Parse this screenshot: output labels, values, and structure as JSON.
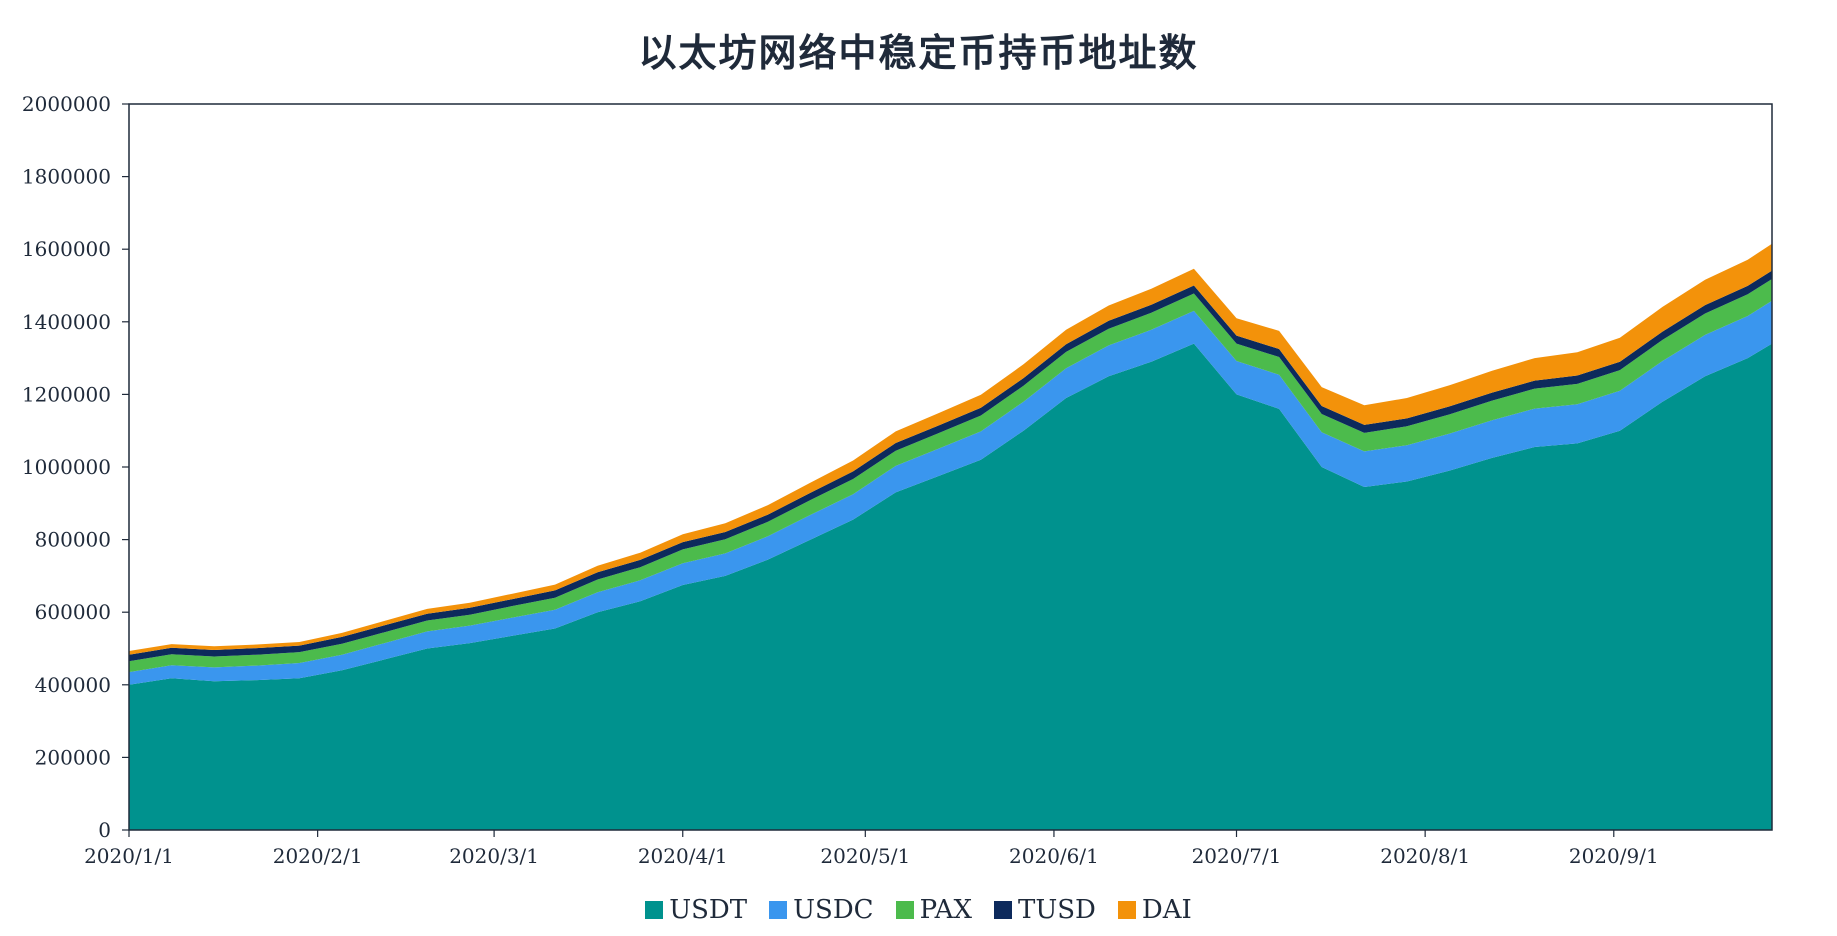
{
  "chart_data": {
    "type": "area",
    "stacked": true,
    "title": "以太坊网络中稳定币持币地址数",
    "xlabel": "",
    "ylabel": "",
    "ylim": [
      0,
      2000000
    ],
    "y_ticks": [
      "0",
      "200000",
      "400000",
      "600000",
      "800000",
      "1000000",
      "1200000",
      "1400000",
      "1600000",
      "1800000",
      "2000000"
    ],
    "x_ticks": [
      "2020/1/1",
      "2020/2/1",
      "2020/3/1",
      "2020/4/1",
      "2020/5/1",
      "2020/6/1",
      "2020/7/1",
      "2020/8/1",
      "2020/9/1"
    ],
    "x_tick_dates": [
      "2020-01-01",
      "2020-02-01",
      "2020-03-01",
      "2020-04-01",
      "2020-05-01",
      "2020-06-01",
      "2020-07-01",
      "2020-08-01",
      "2020-09-01"
    ],
    "x_range": [
      "2020-01-01",
      "2020-09-27"
    ],
    "grid": false,
    "legend_position": "bottom",
    "x": [
      "2020-01-01",
      "2020-01-08",
      "2020-01-15",
      "2020-01-22",
      "2020-01-29",
      "2020-02-05",
      "2020-02-12",
      "2020-02-19",
      "2020-02-26",
      "2020-03-04",
      "2020-03-11",
      "2020-03-18",
      "2020-03-25",
      "2020-04-01",
      "2020-04-08",
      "2020-04-15",
      "2020-04-22",
      "2020-04-29",
      "2020-05-06",
      "2020-05-13",
      "2020-05-20",
      "2020-05-27",
      "2020-06-03",
      "2020-06-10",
      "2020-06-17",
      "2020-06-24",
      "2020-07-01",
      "2020-07-08",
      "2020-07-15",
      "2020-07-22",
      "2020-07-29",
      "2020-08-05",
      "2020-08-12",
      "2020-08-19",
      "2020-08-26",
      "2020-09-02",
      "2020-09-09",
      "2020-09-16",
      "2020-09-23",
      "2020-09-27"
    ],
    "series": [
      {
        "name": "USDT",
        "color": "#00928e",
        "values": [
          400000,
          418000,
          410000,
          413000,
          418000,
          440000,
          470000,
          500000,
          515000,
          535000,
          555000,
          600000,
          630000,
          675000,
          700000,
          745000,
          800000,
          855000,
          930000,
          975000,
          1020000,
          1100000,
          1190000,
          1250000,
          1290000,
          1340000,
          1200000,
          1160000,
          1000000,
          945000,
          960000,
          990000,
          1025000,
          1055000,
          1065000,
          1100000,
          1180000,
          1250000,
          1300000,
          1340000
        ]
      },
      {
        "name": "USDC",
        "color": "#3a96ee",
        "values": [
          35000,
          36000,
          38000,
          40000,
          42000,
          43000,
          45000,
          47000,
          48000,
          50000,
          52000,
          55000,
          58000,
          60000,
          62000,
          64000,
          68000,
          70000,
          73000,
          75000,
          78000,
          80000,
          82000,
          85000,
          88000,
          90000,
          92000,
          94000,
          96000,
          98000,
          100000,
          102000,
          104000,
          106000,
          108000,
          110000,
          112000,
          114000,
          116000,
          118000
        ]
      },
      {
        "name": "PAX",
        "color": "#4cbb4c",
        "values": [
          30000,
          30000,
          30000,
          30000,
          30000,
          30000,
          30000,
          30000,
          30000,
          32000,
          33000,
          35000,
          36000,
          38000,
          39000,
          40000,
          41000,
          42000,
          42000,
          43000,
          44000,
          44000,
          45000,
          46000,
          47000,
          48000,
          48000,
          49000,
          50000,
          51000,
          52000,
          53000,
          54000,
          55000,
          56000,
          57000,
          58000,
          59000,
          60000,
          60000
        ]
      },
      {
        "name": "TUSD",
        "color": "#0d2a5c",
        "values": [
          18000,
          18000,
          18000,
          18000,
          18000,
          19000,
          19000,
          19000,
          19000,
          19000,
          20000,
          20000,
          20000,
          20000,
          20000,
          20000,
          20000,
          21000,
          21000,
          21000,
          21000,
          21000,
          21000,
          22000,
          22000,
          22000,
          22000,
          22000,
          22000,
          22000,
          22000,
          22000,
          22000,
          22000,
          23000,
          23000,
          23000,
          23000,
          23000,
          23000
        ]
      },
      {
        "name": "DAI",
        "color": "#f3920a",
        "values": [
          10000,
          10000,
          10000,
          10000,
          10000,
          11000,
          12000,
          13000,
          14000,
          15000,
          16000,
          18000,
          20000,
          22000,
          24000,
          26000,
          28000,
          30000,
          32000,
          34000,
          36000,
          38000,
          40000,
          42000,
          44000,
          46000,
          48000,
          50000,
          52000,
          54000,
          56000,
          58000,
          60000,
          62000,
          64000,
          66000,
          68000,
          70000,
          72000,
          74000
        ]
      }
    ]
  }
}
